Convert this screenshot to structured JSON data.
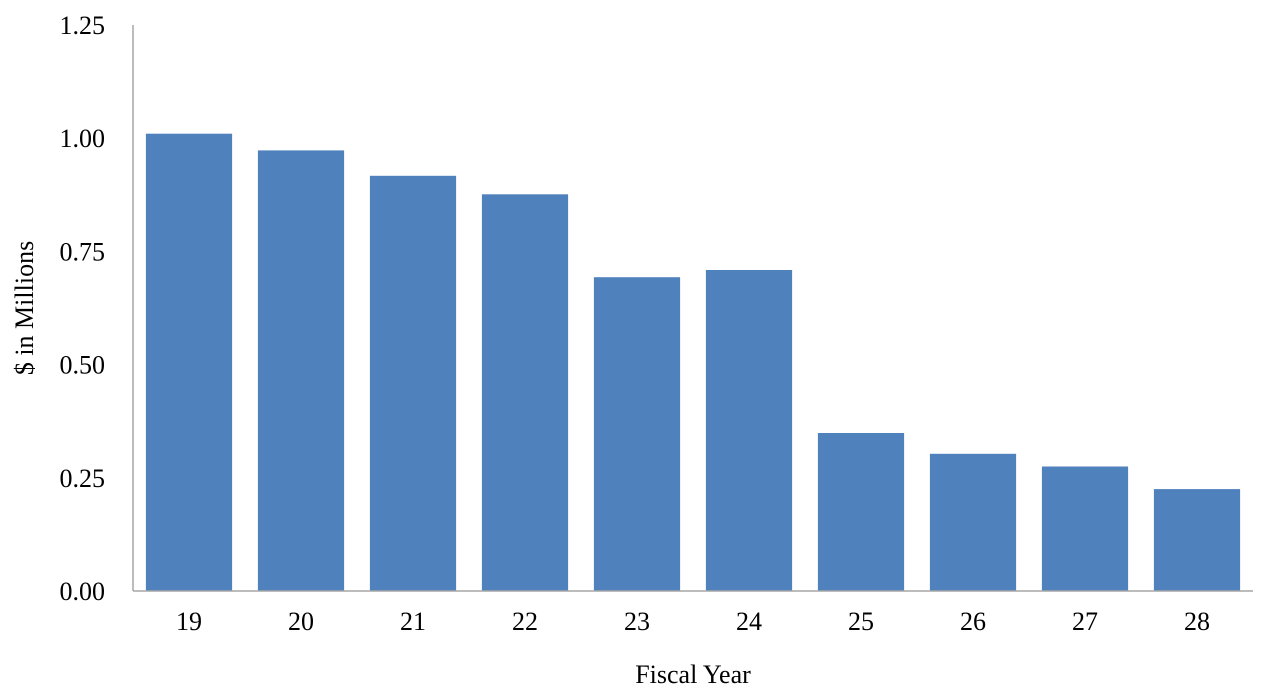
{
  "chart_data": {
    "type": "bar",
    "title": "",
    "xlabel": "Fiscal Year",
    "ylabel": "$ in Millions",
    "categories": [
      "19",
      "20",
      "21",
      "22",
      "23",
      "24",
      "25",
      "26",
      "27",
      "28"
    ],
    "values": [
      1.01,
      0.973,
      0.917,
      0.876,
      0.693,
      0.709,
      0.349,
      0.303,
      0.275,
      0.225
    ],
    "ylim": [
      0,
      1.25
    ],
    "yticks": [
      "0.00",
      "0.25",
      "0.50",
      "0.75",
      "1.00",
      "1.25"
    ],
    "grid": false,
    "legend": "none",
    "bar_color": "#4f81bd"
  }
}
